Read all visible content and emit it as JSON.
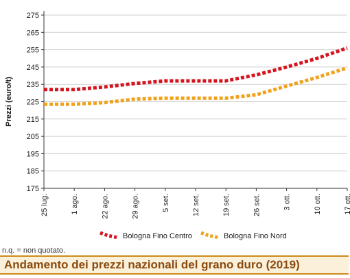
{
  "chart_data": {
    "type": "line",
    "title": "Andamento dei prezzi nazionali del grano duro (2019)",
    "ylabel": "Prezzi (euro/t)",
    "xlabel": "",
    "ylim": [
      175,
      275
    ],
    "y_ticks": [
      175,
      185,
      195,
      205,
      215,
      225,
      235,
      245,
      255,
      265,
      275
    ],
    "categories": [
      "25 lug.",
      "1 ago.",
      "22 ago.",
      "29 ago.",
      "5 set.",
      "12 set.",
      "19 set.",
      "26 set.",
      "3 ott.",
      "10 ott.",
      "17 ott."
    ],
    "grid": "horizontal",
    "legend_position": "bottom",
    "series": [
      {
        "name": "Bologna Fino Centro",
        "color": "#d4141e",
        "values": [
          232,
          232,
          233.5,
          235.5,
          237,
          237,
          237,
          240.5,
          245,
          250,
          256
        ]
      },
      {
        "name": "Bologna Fino Nord",
        "color": "#f0a21c",
        "values": [
          223.5,
          223.5,
          224.5,
          226.5,
          227,
          227,
          227,
          229,
          234,
          239,
          244.5
        ]
      }
    ]
  },
  "note": "n.q. = non quotato.",
  "colors": {
    "title_bar_bg": "#fbf0d9",
    "title_bar_border": "#d08a1a",
    "title_text": "#8a4a10",
    "grid": "#cfcfcf"
  }
}
